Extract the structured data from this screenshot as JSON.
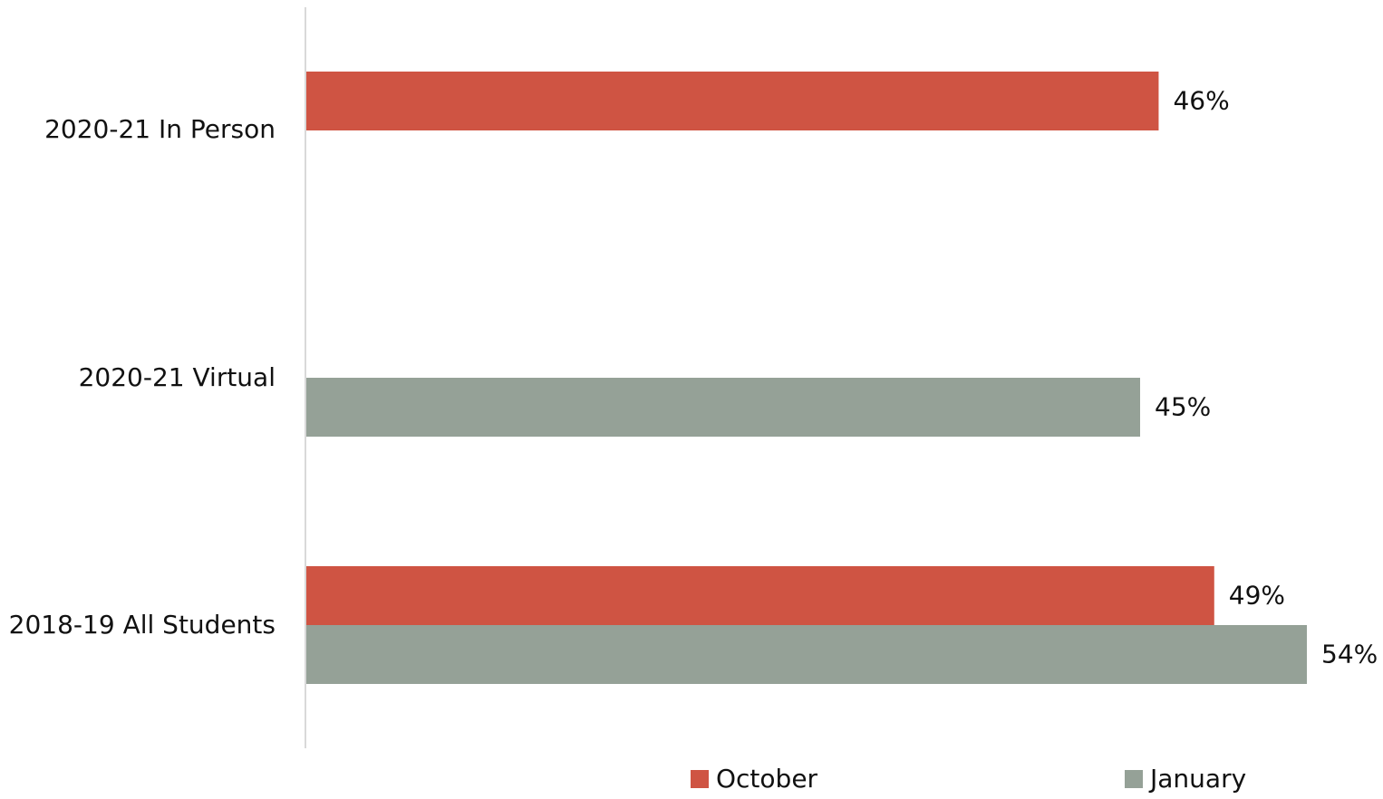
{
  "chart_data": {
    "type": "bar",
    "orientation": "horizontal",
    "categories": [
      "2020-21 In Person",
      "2020-21 Virtual",
      "2018-19 All Students"
    ],
    "series": [
      {
        "name": "October",
        "color": "#cf5443",
        "values": [
          46,
          null,
          49
        ]
      },
      {
        "name": "January",
        "color": "#95a197",
        "values": [
          null,
          45,
          54
        ]
      }
    ],
    "data_labels": {
      "October": [
        "46%",
        "",
        "49%"
      ],
      "January": [
        "",
        "45%",
        "54%"
      ]
    },
    "value_unit": "%",
    "xlim": [
      0,
      54
    ],
    "grid": false,
    "legend_position": "bottom",
    "title": "",
    "xlabel": "",
    "ylabel": ""
  },
  "legend": {
    "october_label": "October",
    "january_label": "January"
  }
}
